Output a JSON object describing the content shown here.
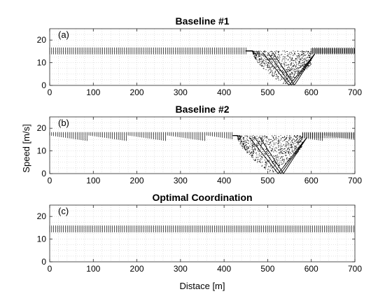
{
  "chart_data": [
    {
      "type": "scatter",
      "panel_label": "(a)",
      "title": "Baseline #1",
      "xlim": [
        0,
        700
      ],
      "ylim": [
        0,
        25
      ],
      "xticks": [
        0,
        100,
        200,
        300,
        400,
        500,
        600,
        700
      ],
      "yticks": [
        0,
        10,
        20
      ],
      "grid": "minor dotted",
      "cruise_speed": 15.2,
      "queue_center_m": 540,
      "queue_start_m": 450,
      "queue_end_m": 600
    },
    {
      "type": "scatter",
      "panel_label": "(b)",
      "title": "Baseline #2",
      "xlim": [
        0,
        700
      ],
      "ylim": [
        0,
        25
      ],
      "xticks": [
        0,
        100,
        200,
        300,
        400,
        500,
        600,
        700
      ],
      "yticks": [
        0,
        10,
        20
      ],
      "grid": "minor dotted",
      "cruise_speed": 16.8,
      "queue_center_m": 510,
      "queue_start_m": 420,
      "queue_end_m": 580
    },
    {
      "type": "scatter",
      "panel_label": "(c)",
      "title": "Optimal Coordination",
      "xlim": [
        0,
        700
      ],
      "ylim": [
        0,
        25
      ],
      "xticks": [
        0,
        100,
        200,
        300,
        400,
        500,
        600,
        700
      ],
      "yticks": [
        0,
        10,
        20
      ],
      "grid": "minor dotted",
      "cruise_speed": 14.5
    }
  ],
  "ylabel": "Speed [m/s]",
  "xlabel": "Distace [m]"
}
